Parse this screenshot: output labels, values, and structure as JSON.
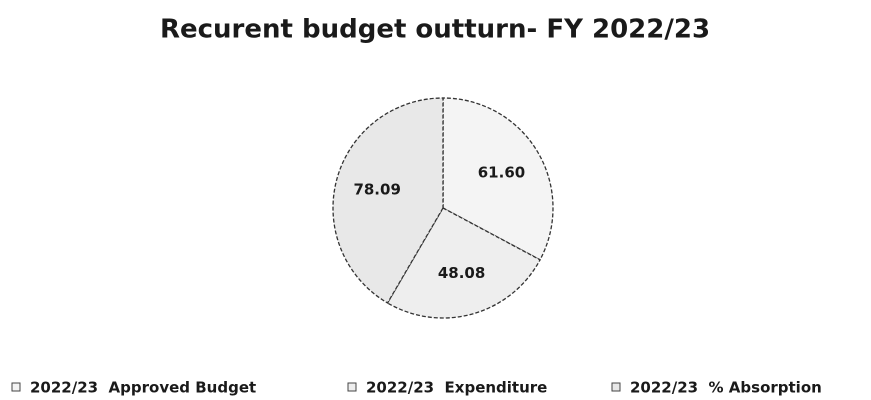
{
  "chart_data": {
    "type": "pie",
    "title": "Recurent budget outturn- FY 2022/23",
    "categories": [
      "2022/23  Approved Budget",
      "2022/23  Expenditure",
      "2022/23  % Absorption"
    ],
    "values": [
      61.6,
      48.08,
      78.09
    ],
    "value_labels": [
      "61.60",
      "48.08",
      "78.09"
    ],
    "colors": [
      "#f4f4f4",
      "#eeeeee",
      "#e8e8e8"
    ],
    "legend": "bottom"
  }
}
